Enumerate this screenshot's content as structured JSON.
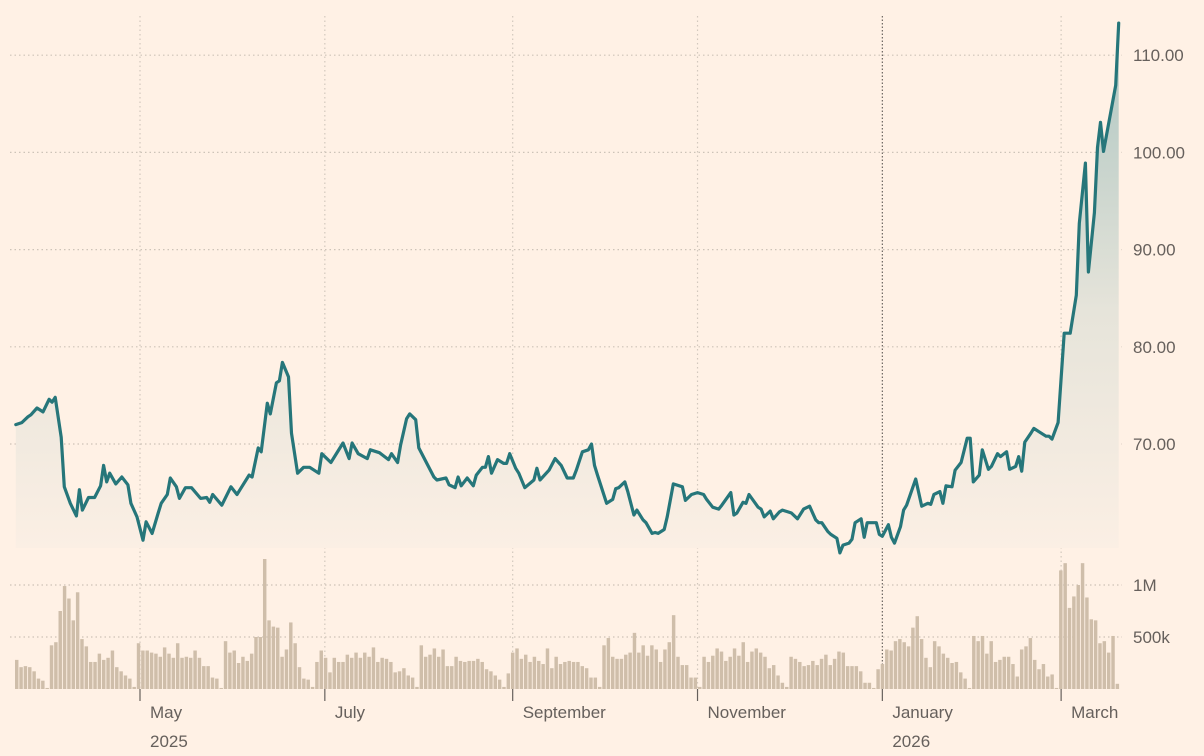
{
  "chart_data": {
    "type": "line",
    "colors": {
      "background": "#fff1e5",
      "price_line": "#26767a",
      "volume_bars": "#cfbeaa",
      "grid": "#cdc3b8"
    },
    "grid": true,
    "price": {
      "y_axis_side": "right",
      "ylim": [
        56,
        114
      ],
      "y_ticks": [
        {
          "value": 110,
          "label": "110.00"
        },
        {
          "value": 100,
          "label": "100.00"
        },
        {
          "value": 90,
          "label": "90.00"
        },
        {
          "value": 80,
          "label": "80.00"
        },
        {
          "value": 70,
          "label": "70.00"
        }
      ],
      "points": [
        [
          "2025-03-21",
          72.0
        ],
        [
          "2025-03-23",
          72.2
        ],
        [
          "2025-03-25",
          72.8
        ],
        [
          "2025-03-26",
          73.0
        ],
        [
          "2025-03-28",
          73.7
        ],
        [
          "2025-03-30",
          73.3
        ],
        [
          "2025-04-01",
          74.6
        ],
        [
          "2025-04-02",
          74.3
        ],
        [
          "2025-04-03",
          74.8
        ],
        [
          "2025-04-05",
          70.7
        ],
        [
          "2025-04-06",
          65.6
        ],
        [
          "2025-04-08",
          63.9
        ],
        [
          "2025-04-10",
          62.6
        ],
        [
          "2025-04-11",
          65.3
        ],
        [
          "2025-04-12",
          63.2
        ],
        [
          "2025-04-14",
          64.5
        ],
        [
          "2025-04-16",
          64.5
        ],
        [
          "2025-04-18",
          65.7
        ],
        [
          "2025-04-19",
          67.8
        ],
        [
          "2025-04-20",
          66.1
        ],
        [
          "2025-04-21",
          67.0
        ],
        [
          "2025-04-23",
          65.9
        ],
        [
          "2025-04-25",
          66.6
        ],
        [
          "2025-04-27",
          65.8
        ],
        [
          "2025-04-28",
          63.9
        ],
        [
          "2025-04-30",
          62.5
        ],
        [
          "2025-05-02",
          60.1
        ],
        [
          "2025-05-03",
          62.0
        ],
        [
          "2025-05-05",
          60.8
        ],
        [
          "2025-05-07",
          62.9
        ],
        [
          "2025-05-08",
          63.9
        ],
        [
          "2025-05-10",
          64.8
        ],
        [
          "2025-05-11",
          66.5
        ],
        [
          "2025-05-13",
          65.6
        ],
        [
          "2025-05-14",
          64.4
        ],
        [
          "2025-05-16",
          65.5
        ],
        [
          "2025-05-18",
          65.5
        ],
        [
          "2025-05-21",
          64.4
        ],
        [
          "2025-05-23",
          64.5
        ],
        [
          "2025-05-24",
          64.0
        ],
        [
          "2025-05-25",
          64.8
        ],
        [
          "2025-05-28",
          63.7
        ],
        [
          "2025-05-31",
          65.6
        ],
        [
          "2025-06-02",
          64.8
        ],
        [
          "2025-06-03",
          65.3
        ],
        [
          "2025-06-06",
          66.8
        ],
        [
          "2025-06-07",
          66.6
        ],
        [
          "2025-06-09",
          69.6
        ],
        [
          "2025-06-10",
          69.2
        ],
        [
          "2025-06-12",
          74.2
        ],
        [
          "2025-06-13",
          73.1
        ],
        [
          "2025-06-15",
          76.3
        ],
        [
          "2025-06-16",
          76.5
        ],
        [
          "2025-06-17",
          78.4
        ],
        [
          "2025-06-19",
          76.9
        ],
        [
          "2025-06-20",
          71.1
        ],
        [
          "2025-06-22",
          67.0
        ],
        [
          "2025-06-24",
          67.6
        ],
        [
          "2025-06-26",
          67.6
        ],
        [
          "2025-06-29",
          67.0
        ],
        [
          "2025-06-30",
          69.0
        ],
        [
          "2025-07-03",
          68.1
        ],
        [
          "2025-07-07",
          70.1
        ],
        [
          "2025-07-09",
          68.5
        ],
        [
          "2025-07-10",
          70.1
        ],
        [
          "2025-07-12",
          69.0
        ],
        [
          "2025-07-15",
          68.5
        ],
        [
          "2025-07-16",
          69.4
        ],
        [
          "2025-07-19",
          69.1
        ],
        [
          "2025-07-22",
          68.4
        ],
        [
          "2025-07-23",
          69.0
        ],
        [
          "2025-07-25",
          68.1
        ],
        [
          "2025-07-26",
          69.9
        ],
        [
          "2025-07-28",
          72.6
        ],
        [
          "2025-07-29",
          73.1
        ],
        [
          "2025-07-31",
          72.5
        ],
        [
          "2025-08-01",
          69.6
        ],
        [
          "2025-08-06",
          66.6
        ],
        [
          "2025-08-07",
          66.3
        ],
        [
          "2025-08-10",
          66.5
        ],
        [
          "2025-08-11",
          65.8
        ],
        [
          "2025-08-13",
          65.5
        ],
        [
          "2025-08-14",
          66.6
        ],
        [
          "2025-08-15",
          65.7
        ],
        [
          "2025-08-17",
          66.5
        ],
        [
          "2025-08-19",
          65.7
        ],
        [
          "2025-08-20",
          66.8
        ],
        [
          "2025-08-22",
          67.6
        ],
        [
          "2025-08-23",
          67.6
        ],
        [
          "2025-08-24",
          68.7
        ],
        [
          "2025-08-25",
          67.0
        ],
        [
          "2025-08-27",
          68.4
        ],
        [
          "2025-08-29",
          68.0
        ],
        [
          "2025-08-30",
          68.0
        ],
        [
          "2025-08-31",
          69.0
        ],
        [
          "2025-09-02",
          67.5
        ],
        [
          "2025-09-03",
          67.0
        ],
        [
          "2025-09-05",
          65.5
        ],
        [
          "2025-09-08",
          66.3
        ],
        [
          "2025-09-09",
          67.5
        ],
        [
          "2025-09-10",
          66.3
        ],
        [
          "2025-09-13",
          67.3
        ],
        [
          "2025-09-15",
          68.5
        ],
        [
          "2025-09-17",
          67.8
        ],
        [
          "2025-09-19",
          66.5
        ],
        [
          "2025-09-21",
          66.5
        ],
        [
          "2025-09-22",
          67.3
        ],
        [
          "2025-09-24",
          69.2
        ],
        [
          "2025-09-26",
          69.4
        ],
        [
          "2025-09-27",
          70.0
        ],
        [
          "2025-09-28",
          67.8
        ],
        [
          "2025-09-29",
          66.8
        ],
        [
          "2025-10-02",
          63.9
        ],
        [
          "2025-10-04",
          64.3
        ],
        [
          "2025-10-05",
          65.4
        ],
        [
          "2025-10-06",
          65.5
        ],
        [
          "2025-10-08",
          66.1
        ],
        [
          "2025-10-09",
          65.1
        ],
        [
          "2025-10-11",
          62.7
        ],
        [
          "2025-10-12",
          63.2
        ],
        [
          "2025-10-14",
          62.2
        ],
        [
          "2025-10-15",
          61.9
        ],
        [
          "2025-10-17",
          60.8
        ],
        [
          "2025-10-18",
          60.9
        ],
        [
          "2025-10-19",
          60.8
        ],
        [
          "2025-10-21",
          61.2
        ],
        [
          "2025-10-22",
          62.5
        ],
        [
          "2025-10-24",
          65.9
        ],
        [
          "2025-10-27",
          65.6
        ],
        [
          "2025-10-28",
          64.2
        ],
        [
          "2025-10-30",
          64.8
        ],
        [
          "2025-11-01",
          65.0
        ],
        [
          "2025-11-03",
          64.8
        ],
        [
          "2025-11-04",
          64.3
        ],
        [
          "2025-11-06",
          63.5
        ],
        [
          "2025-11-08",
          63.3
        ],
        [
          "2025-11-09",
          63.7
        ],
        [
          "2025-11-12",
          65.0
        ],
        [
          "2025-11-13",
          62.7
        ],
        [
          "2025-11-14",
          62.9
        ],
        [
          "2025-11-16",
          64.0
        ],
        [
          "2025-11-17",
          63.9
        ],
        [
          "2025-11-18",
          64.8
        ],
        [
          "2025-11-21",
          63.5
        ],
        [
          "2025-11-22",
          63.3
        ],
        [
          "2025-11-23",
          62.5
        ],
        [
          "2025-11-25",
          63.1
        ],
        [
          "2025-11-26",
          62.3
        ],
        [
          "2025-11-28",
          63.0
        ],
        [
          "2025-11-29",
          63.2
        ],
        [
          "2025-12-01",
          63.0
        ],
        [
          "2025-12-02",
          62.9
        ],
        [
          "2025-12-04",
          62.3
        ],
        [
          "2025-12-06",
          63.3
        ],
        [
          "2025-12-08",
          63.6
        ],
        [
          "2025-12-10",
          62.2
        ],
        [
          "2025-12-11",
          61.9
        ],
        [
          "2025-12-12",
          61.9
        ],
        [
          "2025-12-14",
          61.0
        ],
        [
          "2025-12-15",
          60.7
        ],
        [
          "2025-12-17",
          60.3
        ],
        [
          "2025-12-18",
          58.8
        ],
        [
          "2025-12-19",
          59.6
        ],
        [
          "2025-12-21",
          59.8
        ],
        [
          "2025-12-22",
          60.2
        ],
        [
          "2025-12-23",
          61.9
        ],
        [
          "2025-12-25",
          62.3
        ],
        [
          "2025-12-26",
          60.4
        ],
        [
          "2025-12-27",
          61.9
        ],
        [
          "2025-12-30",
          61.9
        ],
        [
          "2025-12-31",
          60.7
        ],
        [
          "2026-01-01",
          60.5
        ],
        [
          "2026-01-03",
          61.7
        ],
        [
          "2026-01-04",
          60.4
        ],
        [
          "2026-01-05",
          59.8
        ],
        [
          "2026-01-07",
          61.5
        ],
        [
          "2026-01-08",
          63.2
        ],
        [
          "2026-01-09",
          63.7
        ],
        [
          "2026-01-12",
          66.4
        ],
        [
          "2026-01-14",
          63.6
        ],
        [
          "2026-01-16",
          63.9
        ],
        [
          "2026-01-17",
          63.8
        ],
        [
          "2026-01-18",
          64.8
        ],
        [
          "2026-01-20",
          65.1
        ],
        [
          "2026-01-21",
          63.9
        ],
        [
          "2026-01-22",
          65.7
        ],
        [
          "2026-01-24",
          65.6
        ],
        [
          "2026-01-25",
          67.3
        ],
        [
          "2026-01-27",
          68.1
        ],
        [
          "2026-01-29",
          70.6
        ],
        [
          "2026-01-30",
          70.6
        ],
        [
          "2026-01-31",
          66.1
        ],
        [
          "2026-02-02",
          66.8
        ],
        [
          "2026-02-03",
          69.4
        ],
        [
          "2026-02-05",
          67.4
        ],
        [
          "2026-02-06",
          67.7
        ],
        [
          "2026-02-08",
          69.0
        ],
        [
          "2026-02-09",
          68.7
        ],
        [
          "2026-02-11",
          69.2
        ],
        [
          "2026-02-12",
          67.4
        ],
        [
          "2026-02-14",
          67.7
        ],
        [
          "2026-02-15",
          68.7
        ],
        [
          "2026-02-16",
          67.2
        ],
        [
          "2026-02-17",
          70.2
        ],
        [
          "2026-02-19",
          71.1
        ],
        [
          "2026-02-20",
          71.6
        ],
        [
          "2026-02-22",
          71.2
        ],
        [
          "2026-02-24",
          70.8
        ],
        [
          "2026-02-25",
          70.8
        ],
        [
          "2026-02-26",
          70.5
        ],
        [
          "2026-02-28",
          72.2
        ],
        [
          "2026-03-02",
          81.4
        ],
        [
          "2026-03-04",
          81.4
        ],
        [
          "2026-03-06",
          85.3
        ],
        [
          "2026-03-07",
          92.7
        ],
        [
          "2026-03-09",
          98.9
        ],
        [
          "2026-03-10",
          87.7
        ],
        [
          "2026-03-12",
          93.8
        ],
        [
          "2026-03-13",
          100.5
        ],
        [
          "2026-03-14",
          103.1
        ],
        [
          "2026-03-15",
          100.1
        ],
        [
          "2026-03-17",
          103.5
        ],
        [
          "2026-03-19",
          106.9
        ],
        [
          "2026-03-20",
          113.3
        ]
      ]
    },
    "volume": {
      "y_ticks": [
        {
          "value": 1000000,
          "label": "1M"
        },
        {
          "value": 500000,
          "label": "500k"
        }
      ],
      "values_millions": [
        0.28,
        0.21,
        0.22,
        0.21,
        0.17,
        0.1,
        0.08,
        0.01,
        0.42,
        0.45,
        0.75,
        0.99,
        0.87,
        0.66,
        0.93,
        0.48,
        0.41,
        0.26,
        0.26,
        0.34,
        0.28,
        0.3,
        0.37,
        0.21,
        0.17,
        0.13,
        0.1,
        0.02,
        0.44,
        0.37,
        0.37,
        0.35,
        0.34,
        0.31,
        0.4,
        0.34,
        0.3,
        0.44,
        0.3,
        0.31,
        0.3,
        0.37,
        0.3,
        0.22,
        0.22,
        0.11,
        0.1,
        0.01,
        0.46,
        0.35,
        0.37,
        0.25,
        0.31,
        0.27,
        0.34,
        0.5,
        0.5,
        1.25,
        0.66,
        0.6,
        0.59,
        0.31,
        0.38,
        0.64,
        0.44,
        0.21,
        0.1,
        0.09,
        0.02,
        0.26,
        0.37,
        0.3,
        0.16,
        0.3,
        0.26,
        0.26,
        0.33,
        0.3,
        0.35,
        0.3,
        0.35,
        0.31,
        0.4,
        0.26,
        0.3,
        0.29,
        0.26,
        0.16,
        0.17,
        0.2,
        0.13,
        0.11,
        0.02,
        0.42,
        0.31,
        0.33,
        0.39,
        0.31,
        0.38,
        0.22,
        0.22,
        0.31,
        0.27,
        0.26,
        0.27,
        0.27,
        0.29,
        0.26,
        0.19,
        0.17,
        0.13,
        0.09,
        0.02,
        0.15,
        0.35,
        0.39,
        0.29,
        0.33,
        0.26,
        0.31,
        0.27,
        0.24,
        0.39,
        0.2,
        0.31,
        0.24,
        0.26,
        0.27,
        0.26,
        0.26,
        0.22,
        0.2,
        0.11,
        0.11,
        0.02,
        0.42,
        0.49,
        0.31,
        0.29,
        0.29,
        0.33,
        0.35,
        0.54,
        0.35,
        0.42,
        0.32,
        0.42,
        0.38,
        0.26,
        0.38,
        0.45,
        0.71,
        0.31,
        0.23,
        0.23,
        0.11,
        0.11,
        0.02,
        0.31,
        0.26,
        0.32,
        0.39,
        0.36,
        0.27,
        0.31,
        0.39,
        0.32,
        0.45,
        0.26,
        0.36,
        0.39,
        0.35,
        0.31,
        0.2,
        0.23,
        0.13,
        0.06,
        0.02,
        0.31,
        0.29,
        0.26,
        0.22,
        0.23,
        0.27,
        0.23,
        0.29,
        0.33,
        0.23,
        0.29,
        0.36,
        0.35,
        0.22,
        0.22,
        0.22,
        0.17,
        0.06,
        0.06,
        0.01,
        0.19,
        0.24,
        0.38,
        0.37,
        0.46,
        0.48,
        0.45,
        0.41,
        0.59,
        0.7,
        0.48,
        0.3,
        0.21,
        0.46,
        0.41,
        0.34,
        0.3,
        0.25,
        0.26,
        0.16,
        0.1,
        0.01,
        0.51,
        0.46,
        0.51,
        0.34,
        0.46,
        0.26,
        0.28,
        0.31,
        0.31,
        0.24,
        0.12,
        0.38,
        0.41,
        0.49,
        0.28,
        0.19,
        0.24,
        0.12,
        0.14,
        0.01,
        1.14,
        1.21,
        0.78,
        0.89,
        1.0,
        1.21,
        0.88,
        0.67,
        0.66,
        0.44,
        0.46,
        0.35,
        0.51,
        0.05
      ]
    },
    "x_ticks": [
      {
        "date": "2025-05-01",
        "label": "May",
        "sublabel": "2025"
      },
      {
        "date": "2025-07-01",
        "label": "July"
      },
      {
        "date": "2025-09-01",
        "label": "September"
      },
      {
        "date": "2025-11-01",
        "label": "November"
      },
      {
        "date": "2026-01-01",
        "label": "January",
        "sublabel": "2026",
        "emphasis": true
      },
      {
        "date": "2026-03-01",
        "label": "March"
      }
    ]
  }
}
